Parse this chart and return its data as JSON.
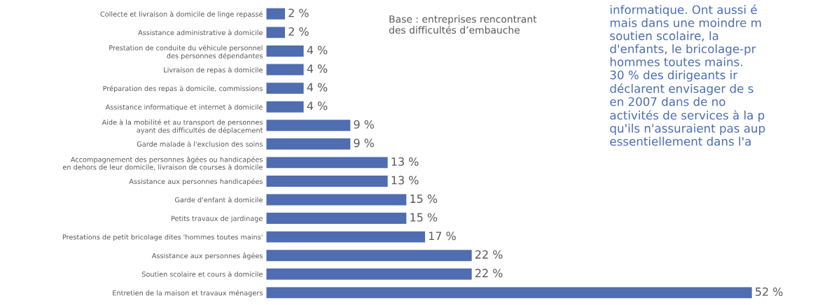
{
  "chart_data": {
    "type": "bar",
    "orientation": "horizontal",
    "categories": [
      "Collecte et livraison à domicile de linge repassé",
      "Assistance administrative à domicile",
      "Prestation de conduite du véhicule personnel\ndes personnes dépendantes",
      "Livraison de repas à domicile",
      "Préparation des repas à domicile, commissions",
      "Assistance informatique et internet à domicile",
      "Aide à la mobilité et au transport de personnes\nayant des difficultés de déplacement",
      "Garde malade à l'exclusion des soins",
      "Accompagnement des personnes âgées ou handicapées\nen dehors de leur domicile, livraison de courses à domicile",
      "Assistance aux personnes handicapées",
      "Garde d'enfant à domicile",
      "Petits travaux de jardinage",
      "Prestations de petit bricolage dites 'hommes toutes mains'",
      "Assistance aux personnes âgées",
      "Soutien scolaire et cours à domicile",
      "Entretien de la maison et travaux ménagers"
    ],
    "values": [
      2,
      2,
      4,
      4,
      4,
      4,
      9,
      9,
      13,
      13,
      15,
      15,
      17,
      22,
      22,
      52
    ],
    "value_labels": [
      "2 %",
      "2 %",
      "4 %",
      "4 %",
      "4 %",
      "4 %",
      "9 %",
      "9 %",
      "13 %",
      "13 %",
      "15 %",
      "15 %",
      "17 %",
      "22 %",
      "22 %",
      "52 %"
    ],
    "color": "#4f6db0",
    "grid": false,
    "legend": false,
    "annotations": [
      "Base : entreprises rencontrant\ndes difficultés d’embauche",
      "informatique. Ont aussi é\nmais dans une moindre m\nsoutien scolaire, la\nd'enfants, le bricolage-pr\nhommes toutes mains.\n30 % des dirigeants ir\ndéclarent envisager de s\nen 2007 dans de no\nactivités de services à la p\nqu'ils n'assuraient pas aup\nessentiellement dans l'a"
    ]
  }
}
